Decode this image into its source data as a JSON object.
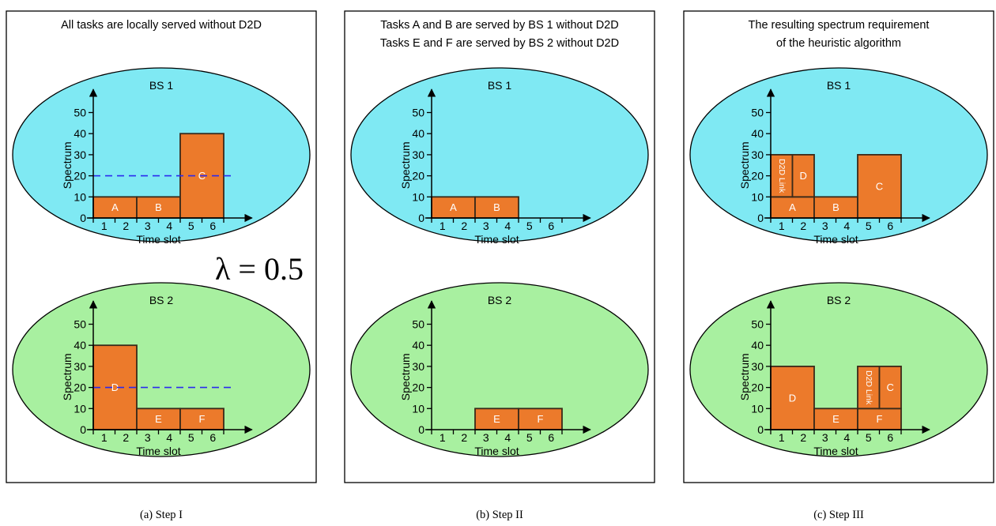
{
  "colors": {
    "bs1_fill": "#7fe9f3",
    "bs2_fill": "#a8f0a0",
    "bar_fill": "#ec7a2b",
    "bar_stroke": "#3a2a1a",
    "threshold": "#2a2aee"
  },
  "axis": {
    "ylabel": "Spectrum",
    "xlabel": "Time slot",
    "yticks": [
      0,
      10,
      20,
      30,
      40,
      50
    ],
    "xticks": [
      1,
      2,
      3,
      4,
      5,
      6
    ],
    "ymax": 55
  },
  "lambda_label": "λ = 0.5",
  "panels": [
    {
      "id": "step1",
      "title_lines": [
        "All tasks are locally served without D2D"
      ],
      "caption": "(a) Step I",
      "stations": [
        {
          "name": "BS 1",
          "fill_key": "bs1_fill",
          "threshold": 20,
          "bars": [
            {
              "label": "A",
              "x0": 0,
              "x1": 2,
              "y0": 0,
              "y1": 10
            },
            {
              "label": "B",
              "x0": 2,
              "x1": 4,
              "y0": 0,
              "y1": 10
            },
            {
              "label": "C",
              "x0": 4,
              "x1": 6,
              "y0": 0,
              "y1": 40
            }
          ]
        },
        {
          "name": "BS 2",
          "fill_key": "bs2_fill",
          "threshold": 20,
          "bars": [
            {
              "label": "D",
              "x0": 0,
              "x1": 2,
              "y0": 0,
              "y1": 40
            },
            {
              "label": "E",
              "x0": 2,
              "x1": 4,
              "y0": 0,
              "y1": 10
            },
            {
              "label": "F",
              "x0": 4,
              "x1": 6,
              "y0": 0,
              "y1": 10
            }
          ]
        }
      ]
    },
    {
      "id": "step2",
      "title_lines": [
        "Tasks A and B are served by BS 1 without D2D",
        "Tasks E and F are served by BS 2 without D2D"
      ],
      "caption": "(b) Step II",
      "stations": [
        {
          "name": "BS 1",
          "fill_key": "bs1_fill",
          "bars": [
            {
              "label": "A",
              "x0": 0,
              "x1": 2,
              "y0": 0,
              "y1": 10
            },
            {
              "label": "B",
              "x0": 2,
              "x1": 4,
              "y0": 0,
              "y1": 10
            }
          ]
        },
        {
          "name": "BS 2",
          "fill_key": "bs2_fill",
          "bars": [
            {
              "label": "E",
              "x0": 2,
              "x1": 4,
              "y0": 0,
              "y1": 10
            },
            {
              "label": "F",
              "x0": 4,
              "x1": 6,
              "y0": 0,
              "y1": 10
            }
          ]
        }
      ]
    },
    {
      "id": "step3",
      "title_lines": [
        "The resulting spectrum requirement",
        "of the heuristic algorithm"
      ],
      "caption": "(c) Step III",
      "stations": [
        {
          "name": "BS 1",
          "fill_key": "bs1_fill",
          "bars": [
            {
              "label": "A",
              "x0": 0,
              "x1": 2,
              "y0": 0,
              "y1": 10
            },
            {
              "label": "D2D Link",
              "x0": 0,
              "x1": 1,
              "y0": 10,
              "y1": 30,
              "vertical": true
            },
            {
              "label": "D",
              "x0": 1,
              "x1": 2,
              "y0": 10,
              "y1": 30
            },
            {
              "label": "B",
              "x0": 2,
              "x1": 4,
              "y0": 0,
              "y1": 10
            },
            {
              "label": "C",
              "x0": 4,
              "x1": 6,
              "y0": 0,
              "y1": 30
            }
          ]
        },
        {
          "name": "BS 2",
          "fill_key": "bs2_fill",
          "bars": [
            {
              "label": "D",
              "x0": 0,
              "x1": 2,
              "y0": 0,
              "y1": 30
            },
            {
              "label": "E",
              "x0": 2,
              "x1": 4,
              "y0": 0,
              "y1": 10
            },
            {
              "label": "F",
              "x0": 4,
              "x1": 6,
              "y0": 0,
              "y1": 10
            },
            {
              "label": "D2D Link",
              "x0": 4,
              "x1": 5,
              "y0": 10,
              "y1": 30,
              "vertical": true
            },
            {
              "label": "C",
              "x0": 5,
              "x1": 6,
              "y0": 10,
              "y1": 30
            }
          ]
        }
      ]
    }
  ]
}
